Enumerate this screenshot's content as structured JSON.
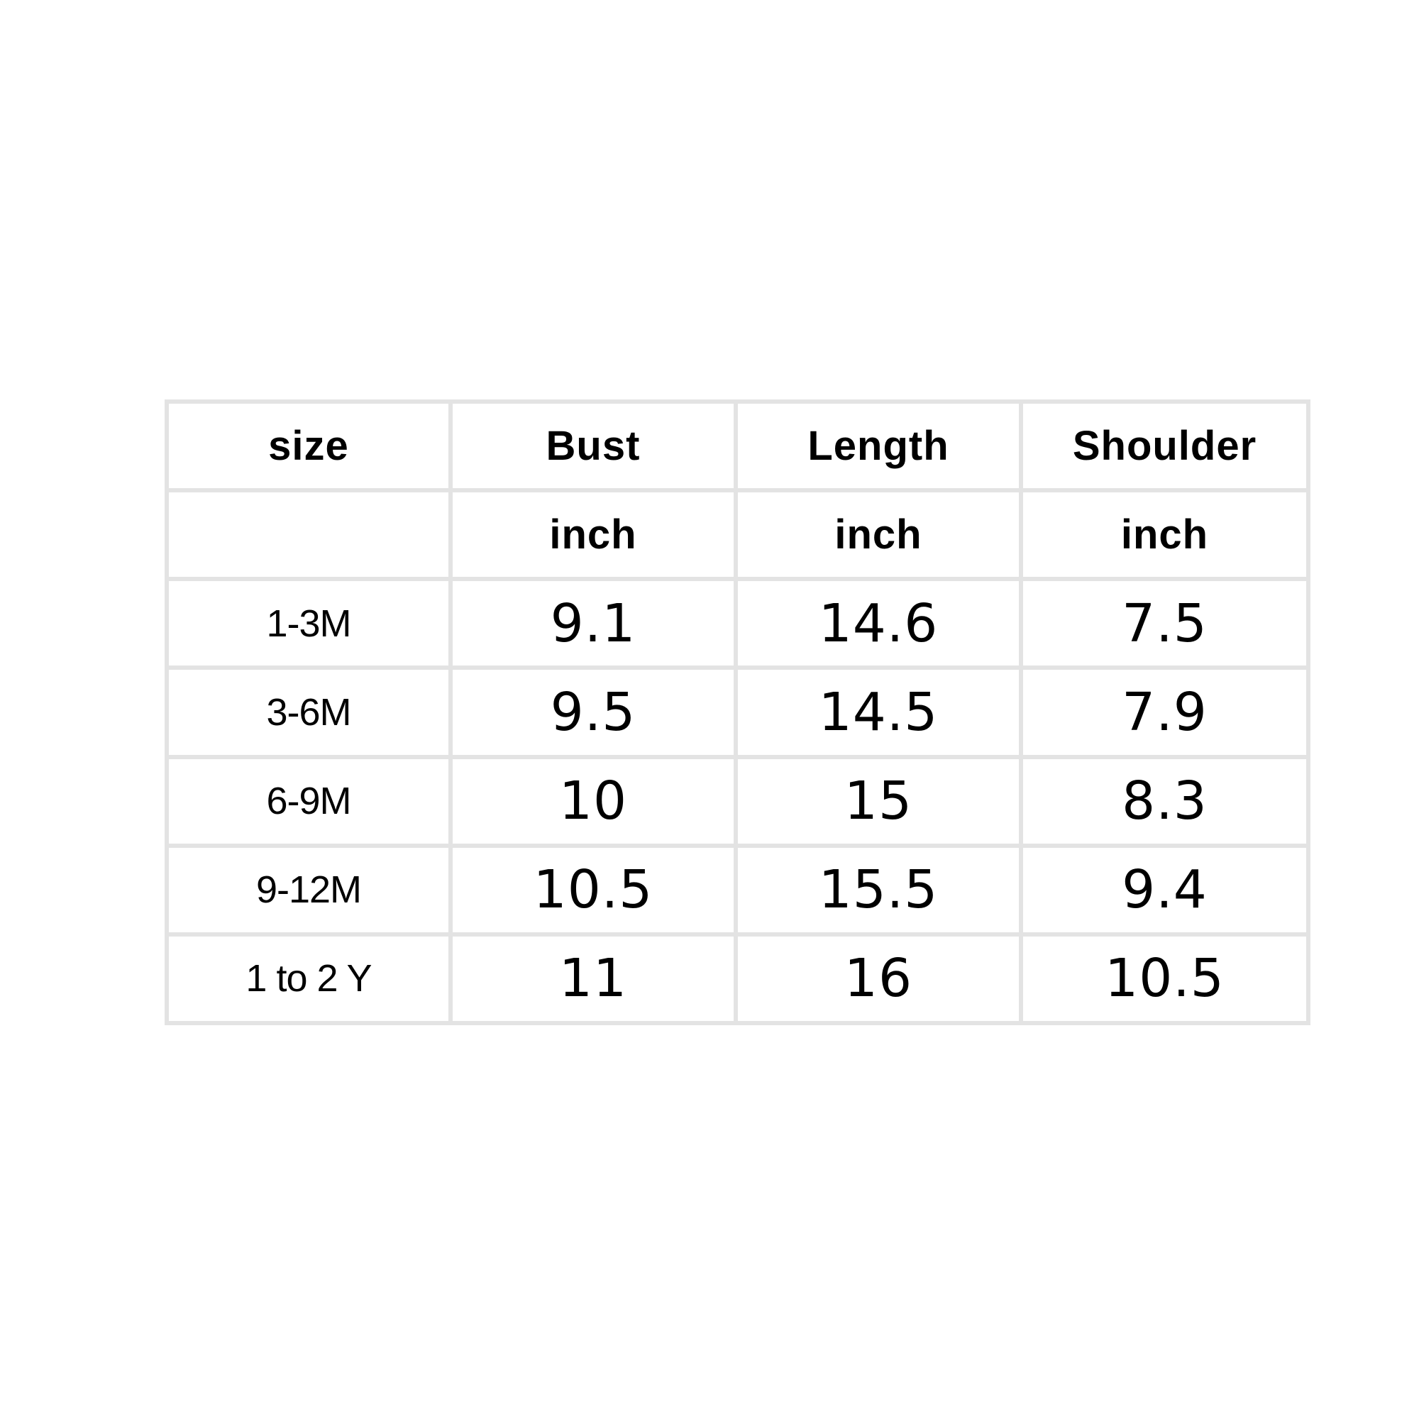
{
  "table": {
    "headers": [
      "size",
      "Bust",
      "Length",
      "Shoulder"
    ],
    "units": [
      "",
      "inch",
      "inch",
      "inch"
    ],
    "rows": [
      {
        "size": "1-3M",
        "bust": "9.1",
        "length": "14.6",
        "shoulder": "7.5"
      },
      {
        "size": "3-6M",
        "bust": "9.5",
        "length": "14.5",
        "shoulder": "7.9"
      },
      {
        "size": "6-9M",
        "bust": "10",
        "length": "15",
        "shoulder": "8.3"
      },
      {
        "size": "9-12M",
        "bust": "10.5",
        "length": "15.5",
        "shoulder": "9.4"
      },
      {
        "size": "1 to 2 Y",
        "bust": "11",
        "length": "16",
        "shoulder": "10.5"
      }
    ],
    "border_color": "#e3e3e3"
  }
}
